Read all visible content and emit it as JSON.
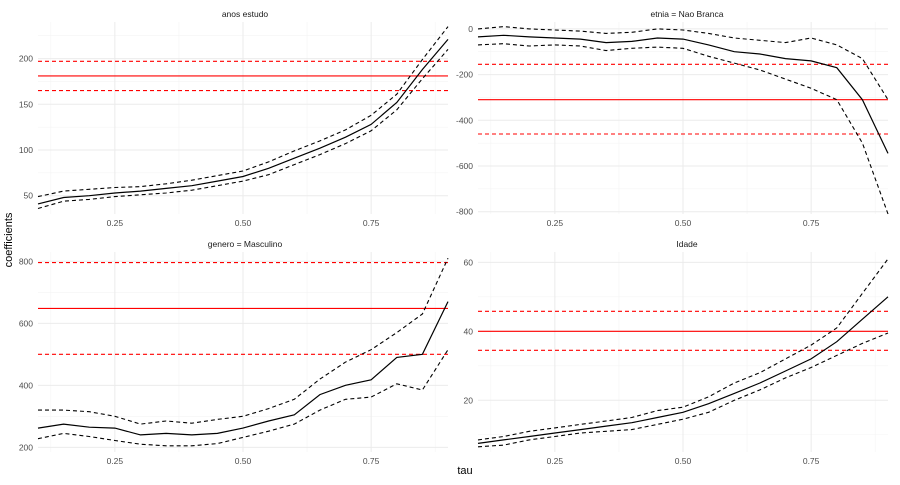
{
  "figure": {
    "xlabel": "tau",
    "ylabel": "coefficients"
  },
  "colors": {
    "estimate": "#000000",
    "ols": "#ff0000",
    "grid_major": "#ebebeb",
    "grid_minor": "#f4f4f4",
    "axis_text": "#4d4d4d"
  },
  "chart_data": [
    {
      "type": "line",
      "title": "anos estudo",
      "xlim": [
        0.1,
        0.9
      ],
      "ylim": [
        30,
        240
      ],
      "x_ticks": [
        0.25,
        0.5,
        0.75
      ],
      "x_tick_labels": [
        "0.25",
        "0.50",
        "0.75"
      ],
      "y_ticks": [
        50,
        100,
        150,
        200
      ],
      "y_tick_labels": [
        "50",
        "100",
        "150",
        "200"
      ],
      "grid": true,
      "x": [
        0.1,
        0.15,
        0.2,
        0.25,
        0.3,
        0.35,
        0.4,
        0.45,
        0.5,
        0.55,
        0.6,
        0.65,
        0.7,
        0.75,
        0.8,
        0.85,
        0.9
      ],
      "estimate": [
        41,
        48,
        50,
        53,
        55,
        58,
        61,
        66,
        71,
        80,
        91,
        102,
        114,
        128,
        152,
        188,
        221
      ],
      "lower": [
        36,
        44,
        46,
        49,
        51,
        53,
        56,
        61,
        66,
        73,
        84,
        95,
        107,
        121,
        144,
        178,
        210
      ],
      "upper": [
        49,
        55,
        57,
        59,
        60,
        63,
        67,
        72,
        77,
        87,
        99,
        110,
        122,
        138,
        161,
        199,
        235
      ],
      "ols": 181,
      "ols_lower": 165,
      "ols_upper": 197
    },
    {
      "type": "line",
      "title": "etnia = Nao Branca",
      "xlim": [
        0.1,
        0.9
      ],
      "ylim": [
        -810,
        30
      ],
      "x_ticks": [
        0.25,
        0.5,
        0.75
      ],
      "x_tick_labels": [
        "0.25",
        "0.50",
        "0.75"
      ],
      "y_ticks": [
        0,
        -200,
        -400,
        -600,
        -800
      ],
      "y_tick_labels": [
        "0",
        "-200",
        "-400",
        "-600",
        "-800"
      ],
      "grid": true,
      "x": [
        0.1,
        0.15,
        0.2,
        0.25,
        0.3,
        0.35,
        0.4,
        0.45,
        0.5,
        0.55,
        0.6,
        0.65,
        0.7,
        0.75,
        0.8,
        0.85,
        0.9
      ],
      "estimate": [
        -35,
        -28,
        -35,
        -40,
        -45,
        -60,
        -55,
        -40,
        -45,
        -70,
        -100,
        -110,
        -130,
        -140,
        -170,
        -310,
        -545
      ],
      "lower": [
        -70,
        -65,
        -75,
        -70,
        -75,
        -95,
        -85,
        -80,
        -85,
        -120,
        -150,
        -180,
        -220,
        -260,
        -310,
        -500,
        -810
      ],
      "upper": [
        0,
        10,
        0,
        -5,
        -10,
        -20,
        -15,
        0,
        -5,
        -20,
        -40,
        -50,
        -60,
        -40,
        -70,
        -130,
        -310
      ],
      "ols": -310,
      "ols_lower": -460,
      "ols_upper": -155
    },
    {
      "type": "line",
      "title": "genero = Masculino",
      "xlim": [
        0.1,
        0.9
      ],
      "ylim": [
        185,
        830
      ],
      "x_ticks": [
        0.25,
        0.5,
        0.75
      ],
      "x_tick_labels": [
        "0.25",
        "0.50",
        "0.75"
      ],
      "y_ticks": [
        200,
        400,
        600,
        800
      ],
      "y_tick_labels": [
        "200",
        "400",
        "600",
        "800"
      ],
      "grid": true,
      "x": [
        0.1,
        0.15,
        0.2,
        0.25,
        0.3,
        0.35,
        0.4,
        0.45,
        0.5,
        0.55,
        0.6,
        0.65,
        0.7,
        0.75,
        0.8,
        0.85,
        0.9
      ],
      "estimate": [
        262,
        275,
        265,
        262,
        240,
        245,
        240,
        245,
        262,
        285,
        305,
        370,
        400,
        418,
        490,
        500,
        670
      ],
      "lower": [
        228,
        245,
        235,
        222,
        210,
        205,
        205,
        212,
        232,
        252,
        275,
        320,
        355,
        362,
        405,
        385,
        515
      ],
      "upper": [
        320,
        320,
        315,
        300,
        275,
        285,
        278,
        290,
        300,
        325,
        355,
        420,
        475,
        515,
        570,
        630,
        810
      ],
      "ols": 648,
      "ols_lower": 500,
      "ols_upper": 796
    },
    {
      "type": "line",
      "title": "Idade",
      "xlim": [
        0.1,
        0.9
      ],
      "ylim": [
        5,
        63
      ],
      "x_ticks": [
        0.25,
        0.5,
        0.75
      ],
      "x_tick_labels": [
        "0.25",
        "0.50",
        "0.75"
      ],
      "y_ticks": [
        20,
        40,
        60
      ],
      "y_tick_labels": [
        "20",
        "40",
        "60"
      ],
      "grid": true,
      "x": [
        0.1,
        0.15,
        0.2,
        0.25,
        0.3,
        0.35,
        0.4,
        0.45,
        0.5,
        0.55,
        0.6,
        0.65,
        0.7,
        0.75,
        0.8,
        0.85,
        0.9
      ],
      "estimate": [
        7.5,
        8.5,
        9.5,
        10.5,
        11.5,
        12.5,
        13.5,
        15.0,
        16.5,
        19.0,
        22.0,
        25.0,
        28.5,
        32.0,
        37.0,
        43.5,
        50.0
      ],
      "lower": [
        6.5,
        7.0,
        8.5,
        9.5,
        10.5,
        11.0,
        11.5,
        13.0,
        14.5,
        16.5,
        20.0,
        23.0,
        26.5,
        29.5,
        33.0,
        36.5,
        39.5
      ],
      "upper": [
        8.5,
        9.5,
        11.0,
        12.0,
        13.0,
        14.0,
        15.0,
        17.0,
        18.0,
        21.0,
        25.0,
        28.0,
        32.0,
        36.0,
        41.0,
        51.0,
        61.0
      ],
      "ols": 40,
      "ols_lower": 34.5,
      "ols_upper": 45.8
    }
  ]
}
